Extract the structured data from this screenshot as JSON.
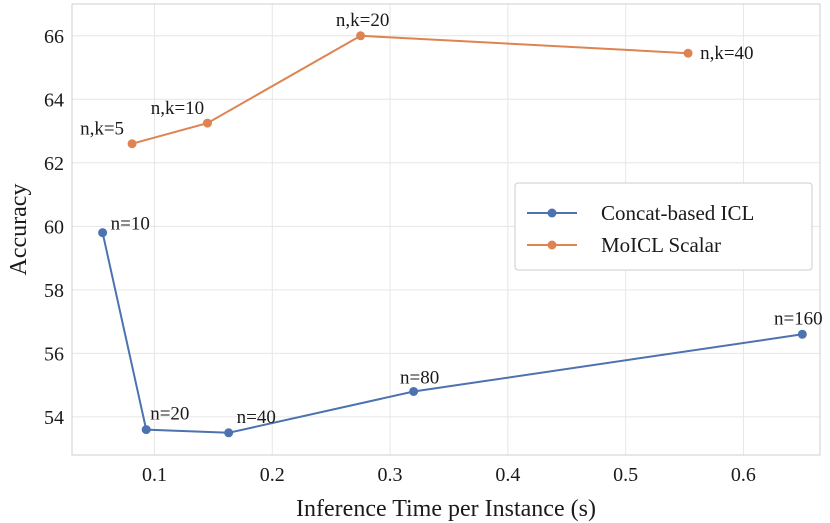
{
  "chart_data": {
    "type": "line",
    "xlabel": "Inference Time per Instance (s)",
    "ylabel": "Accuracy",
    "xlim": [
      0.03,
      0.665
    ],
    "ylim": [
      52.8,
      67.0
    ],
    "x_ticks": [
      0.1,
      0.2,
      0.3,
      0.4,
      0.5,
      0.6
    ],
    "y_ticks": [
      54,
      56,
      58,
      60,
      62,
      64,
      66
    ],
    "x_tick_labels": [
      "0.1",
      "0.2",
      "0.3",
      "0.4",
      "0.5",
      "0.6"
    ],
    "y_tick_labels": [
      "54",
      "56",
      "58",
      "60",
      "62",
      "64",
      "66"
    ],
    "grid": true,
    "legend_position": "center-right",
    "series": [
      {
        "name": "Concat-based ICL",
        "color": "#4c72b0",
        "x": [
          0.056,
          0.093,
          0.163,
          0.32,
          0.65
        ],
        "y": [
          59.8,
          53.6,
          53.5,
          54.8,
          56.6
        ],
        "labels": [
          "n=10",
          "n=20",
          "n=40",
          "n=80",
          "n=160"
        ]
      },
      {
        "name": "MoICL Scalar",
        "color": "#dd8452",
        "x": [
          0.081,
          0.145,
          0.275,
          0.553
        ],
        "y": [
          62.6,
          63.25,
          66.0,
          65.45
        ],
        "labels": [
          "n,k=5",
          "n,k=10",
          "n,k=20",
          "n,k=40"
        ]
      }
    ]
  }
}
